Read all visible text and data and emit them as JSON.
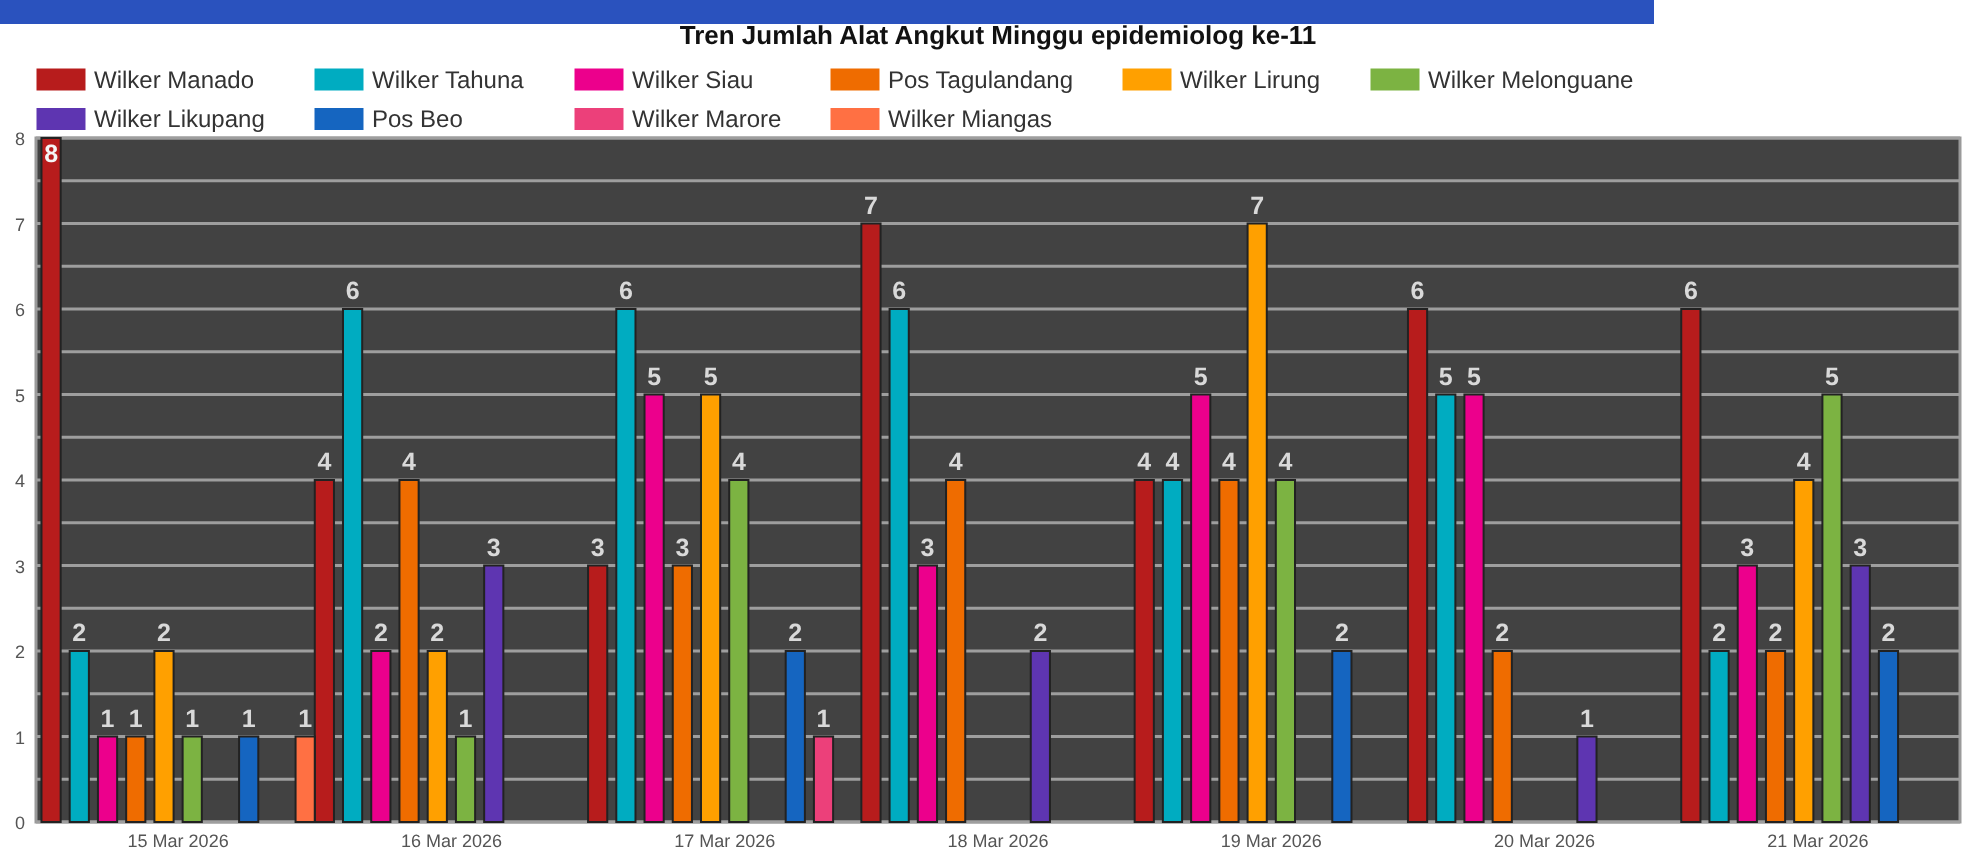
{
  "chart_data": {
    "type": "bar",
    "title": "Tren Jumlah Alat Angkut Minggu epidemiolog ke-11",
    "categories": [
      "15 Mar 2026",
      "16 Mar 2026",
      "17 Mar 2026",
      "18 Mar 2026",
      "19 Mar 2026",
      "20 Mar 2026",
      "21 Mar 2026"
    ],
    "series": [
      {
        "name": "Wilker Manado",
        "color": "#b71c1c",
        "values": [
          8,
          4,
          3,
          7,
          4,
          6,
          6
        ]
      },
      {
        "name": "Wilker Tahuna",
        "color": "#00acc1",
        "values": [
          2,
          6,
          6,
          6,
          4,
          5,
          2
        ]
      },
      {
        "name": "Wilker Siau",
        "color": "#ec008c",
        "values": [
          1,
          2,
          5,
          3,
          5,
          5,
          3
        ]
      },
      {
        "name": "Pos Tagulandang",
        "color": "#ef6c00",
        "values": [
          1,
          4,
          3,
          4,
          4,
          2,
          2
        ]
      },
      {
        "name": "Wilker Lirung",
        "color": "#ffa000",
        "values": [
          2,
          2,
          5,
          null,
          7,
          null,
          4
        ]
      },
      {
        "name": "Wilker Melonguane",
        "color": "#7cb342",
        "values": [
          1,
          1,
          4,
          null,
          4,
          null,
          5
        ]
      },
      {
        "name": "Wilker Likupang",
        "color": "#5e35b1",
        "values": [
          null,
          3,
          null,
          2,
          null,
          1,
          3
        ]
      },
      {
        "name": "Pos Beo",
        "color": "#1565c0",
        "values": [
          1,
          null,
          2,
          null,
          2,
          null,
          2
        ]
      },
      {
        "name": "Wilker Marore",
        "color": "#ec407a",
        "values": [
          null,
          null,
          1,
          null,
          null,
          null,
          null
        ]
      },
      {
        "name": "Wilker Miangas",
        "color": "#ff7043",
        "values": [
          1,
          null,
          null,
          null,
          null,
          null,
          null
        ]
      }
    ],
    "ylim": [
      0,
      8
    ],
    "yticks": [
      0,
      {
        "value": 0.5,
        "label": null
      },
      1,
      {
        "value": 1.5,
        "label": null
      },
      2,
      {
        "value": 2.5,
        "label": null
      },
      3,
      {
        "value": 3.5,
        "label": null
      },
      4,
      {
        "value": 4.5,
        "label": null
      },
      5,
      {
        "value": 5.5,
        "label": null
      },
      6,
      {
        "value": 6.5,
        "label": null
      },
      7,
      {
        "value": 7.5,
        "label": null
      },
      8
    ],
    "grid": "y",
    "legend": "top",
    "data_labels": true
  }
}
